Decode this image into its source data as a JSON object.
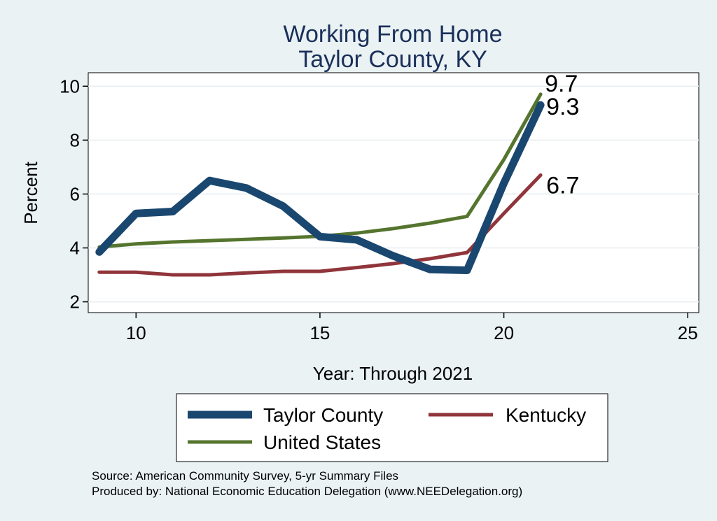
{
  "chart_data": {
    "type": "line",
    "title": [
      "Working From Home",
      "Taylor County, KY"
    ],
    "xlabel": "Year: Through 2021",
    "ylabel": "Percent",
    "xlim": [
      8.7,
      25.3
    ],
    "ylim": [
      1.6,
      10.5
    ],
    "xticks": [
      10,
      15,
      20,
      25
    ],
    "yticks": [
      2,
      4,
      6,
      8,
      10
    ],
    "grid": true,
    "legend_position": "bottom",
    "series": [
      {
        "name": "Taylor County",
        "color": "#1a476f",
        "x": [
          9,
          10,
          11,
          12,
          13,
          14,
          15,
          16,
          17,
          18,
          19,
          20,
          21
        ],
        "y": [
          3.85,
          5.28,
          5.35,
          6.5,
          6.22,
          5.55,
          4.42,
          4.3,
          3.7,
          3.2,
          3.17,
          6.4,
          9.3
        ],
        "end_label": "9.3"
      },
      {
        "name": "Kentucky",
        "color": "#90353b",
        "x": [
          9,
          10,
          11,
          12,
          13,
          14,
          15,
          16,
          17,
          18,
          19,
          20,
          21
        ],
        "y": [
          3.1,
          3.1,
          3.0,
          3.0,
          3.07,
          3.13,
          3.13,
          3.27,
          3.42,
          3.6,
          3.83,
          5.28,
          6.7
        ],
        "end_label": "6.7"
      },
      {
        "name": "United States",
        "color": "#55752f",
        "x": [
          9,
          10,
          11,
          12,
          13,
          14,
          15,
          16,
          17,
          18,
          19,
          20,
          21
        ],
        "y": [
          4.03,
          4.15,
          4.22,
          4.27,
          4.32,
          4.37,
          4.43,
          4.55,
          4.72,
          4.92,
          5.17,
          7.28,
          9.7
        ],
        "end_label": "9.7"
      }
    ],
    "notes": [
      "Source: American Community Survey, 5-yr Summary Files",
      "Produced by: National Economic Education Delegation (www.NEEDelegation.org)"
    ]
  }
}
